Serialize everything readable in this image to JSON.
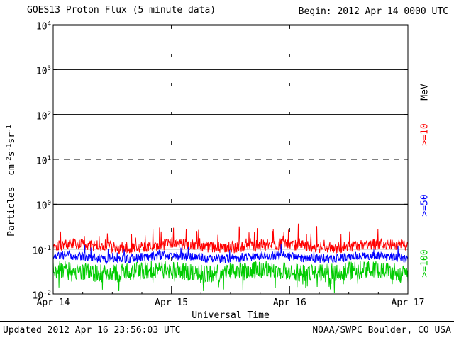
{
  "header": {
    "title": "GOES13 Proton Flux (5 minute data)",
    "begin_label": "Begin: 2012 Apr 14 0000 UTC"
  },
  "footer": {
    "updated": "Updated 2012 Apr 16 23:56:03 UTC",
    "source": "NOAA/SWPC Boulder, CO USA"
  },
  "y_axis": {
    "label_parts": {
      "base1": "Particles  cm",
      "sup1": "-2",
      "base2": "s",
      "sup2": "-1",
      "base3": "sr",
      "sup3": "-1"
    }
  },
  "right_labels": {
    "unit": "MeV",
    "unit_color": "#000000"
  },
  "chart_data": {
    "type": "line",
    "title": "GOES13 Proton Flux (5 minute data)",
    "subtitle": "Begin: 2012 Apr 14 0000 UTC",
    "xlabel": "Universal Time",
    "ylabel": "Particles cm^-2 s^-1 sr^-1",
    "x_ticks": [
      "Apr 14",
      "Apr 15",
      "Apr 16",
      "Apr 17"
    ],
    "x_span_days": 3,
    "points_per_day": 288,
    "y_scale": "log10",
    "y_log_min": -2,
    "y_log_max": 4,
    "y_tick_base": "10",
    "y_tick_exponents": [
      4,
      3,
      2,
      1,
      0,
      -1,
      -2
    ],
    "gridlines": {
      "solid_exponents": [
        3,
        2,
        0,
        -1
      ],
      "dashed_exponents": [
        1
      ],
      "vertical_day_lines": [
        1,
        2
      ]
    },
    "legend_position": "right",
    "series": [
      {
        "label": ">=10",
        "unit": "MeV",
        "color": "#FF0000",
        "mean_log10": -0.93,
        "noise_log10": 0.13,
        "spike_prob": 0.06,
        "spike_log10": 0.38,
        "spike_dir": 1,
        "seed": 101,
        "approx_mean_flux": 0.12,
        "approx_flux_range": [
          0.06,
          0.3
        ]
      },
      {
        "label": ">=50",
        "unit": "MeV",
        "color": "#0000FF",
        "mean_log10": -1.18,
        "noise_log10": 0.1,
        "spike_prob": 0.04,
        "spike_log10": 0.2,
        "spike_dir": 1,
        "seed": 202,
        "approx_mean_flux": 0.066,
        "approx_flux_range": [
          0.045,
          0.12
        ]
      },
      {
        "label": ">=100",
        "unit": "MeV",
        "color": "#00CC00",
        "mean_log10": -1.5,
        "noise_log10": 0.2,
        "spike_prob": 0.06,
        "spike_log10": 0.32,
        "spike_dir": -1,
        "seed": 303,
        "approx_mean_flux": 0.032,
        "approx_flux_range": [
          0.012,
          0.08
        ]
      }
    ]
  }
}
